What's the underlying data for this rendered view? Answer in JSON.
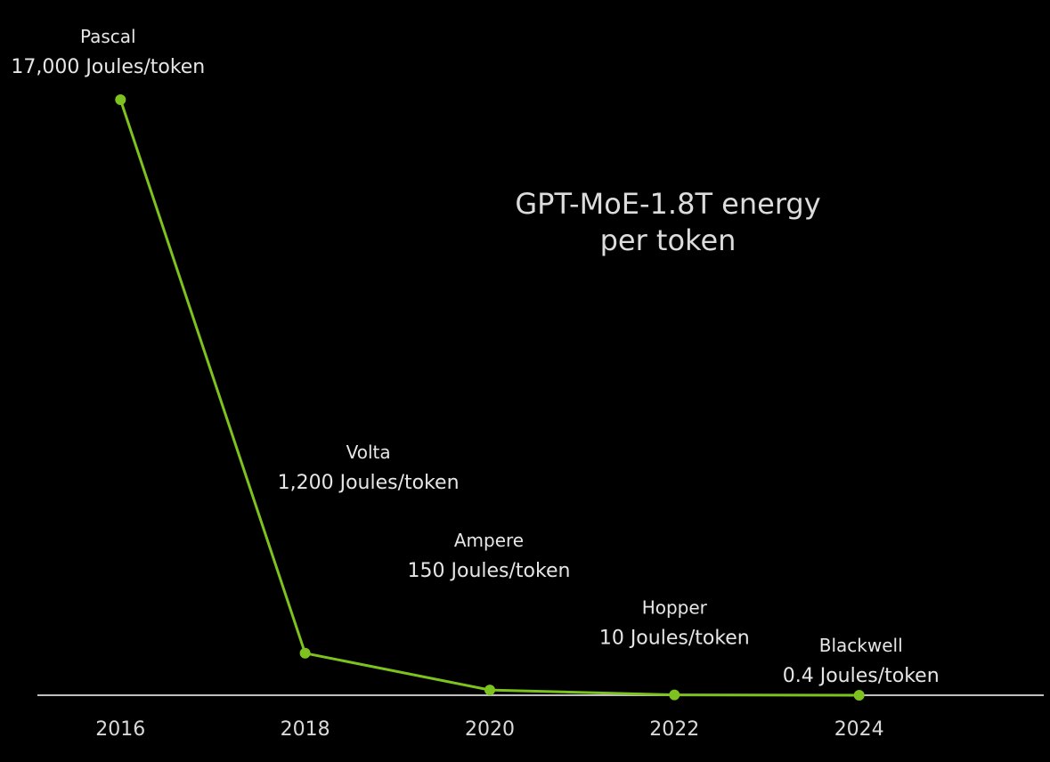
{
  "chart_data": {
    "type": "line",
    "title_line1": "GPT-MoE-1.8T energy",
    "title_line2": "per token",
    "xlabel": "",
    "ylabel": "",
    "x": [
      2016,
      2018,
      2020,
      2022,
      2024
    ],
    "x_tick_labels": [
      "2016",
      "2018",
      "2020",
      "2022",
      "2024"
    ],
    "y_unit": "Joules/token",
    "series": [
      {
        "values": [
          17000,
          1200,
          150,
          10,
          0.4
        ],
        "color": "#7dc21e"
      }
    ],
    "annotations": [
      {
        "name": "Pascal",
        "value_label": "17,000 Joules/token"
      },
      {
        "name": "Volta",
        "value_label": "1,200 Joules/token"
      },
      {
        "name": "Ampere",
        "value_label": "150 Joules/token"
      },
      {
        "name": "Hopper",
        "value_label": "10 Joules/token"
      },
      {
        "name": "Blackwell",
        "value_label": "0.4 Joules/token"
      }
    ],
    "xlim": [
      2015.1,
      2026
    ],
    "ylim": [
      0,
      17000
    ],
    "grid": false,
    "legend": "none",
    "background_color": "#000000",
    "axis_color": "#bfbfbf"
  }
}
